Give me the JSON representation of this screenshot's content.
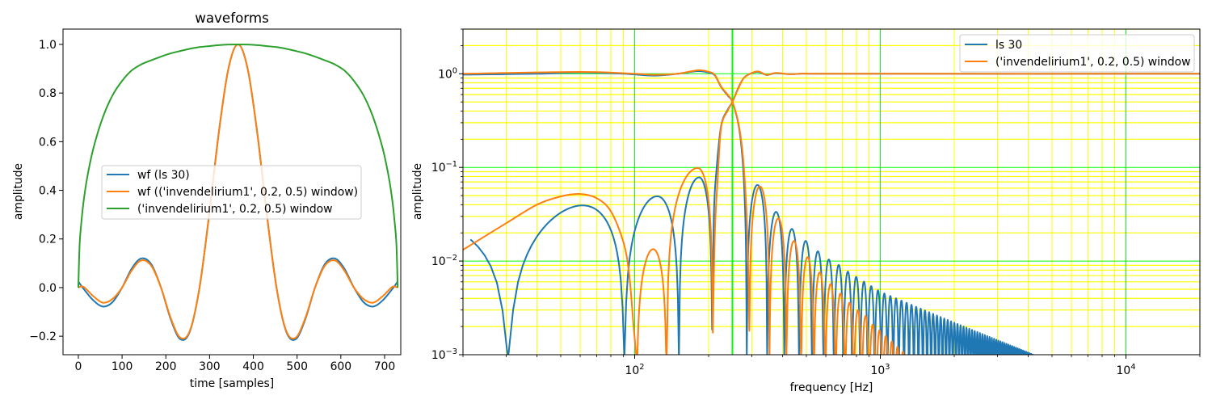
{
  "chart_data": [
    {
      "type": "line",
      "title": "waveforms",
      "xlabel": "time [samples]",
      "ylabel": "amplitude",
      "xlim": [
        -35,
        737
      ],
      "ylim": [
        -0.276,
        1.063
      ],
      "grid": false,
      "legend_placement": "center",
      "xticks": [
        0,
        100,
        200,
        300,
        400,
        500,
        600,
        700
      ],
      "xtick_labels": [
        "0",
        "100",
        "200",
        "300",
        "400",
        "500",
        "600",
        "700"
      ],
      "yticks": [
        -0.2,
        0.0,
        0.2,
        0.4,
        0.6,
        0.8,
        1.0
      ],
      "ytick_labels": [
        "−0.2",
        "0.0",
        "0.2",
        "0.4",
        "0.6",
        "0.8",
        "1.0"
      ],
      "series": [
        {
          "name": "wf (ls 30)",
          "color": "#1f77b4",
          "x": [
            0,
            12,
            34,
            56,
            78,
            100,
            122,
            144,
            167,
            189,
            211,
            233,
            255,
            277,
            299,
            321,
            343,
            365,
            387,
            409,
            431,
            453,
            475,
            497,
            519,
            541,
            563,
            586,
            608,
            630,
            652,
            674,
            696,
            718,
            730
          ],
          "y": [
            0.025,
            -0.005,
            -0.052,
            -0.078,
            -0.06,
            0,
            0.078,
            0.12,
            0.095,
            0,
            -0.129,
            -0.212,
            -0.18,
            0,
            0.3,
            0.637,
            0.9,
            1,
            0.9,
            0.637,
            0.3,
            0,
            -0.18,
            -0.212,
            -0.129,
            0,
            0.095,
            0.12,
            0.078,
            0,
            -0.06,
            -0.078,
            -0.052,
            -0.005,
            0.025
          ]
        },
        {
          "name": "wf (('invendelirium1', 0.2, 0.5) window)",
          "color": "#ff7f0e",
          "x": [
            0,
            12,
            34,
            56,
            78,
            100,
            122,
            144,
            167,
            189,
            211,
            233,
            255,
            277,
            299,
            321,
            343,
            365,
            387,
            409,
            431,
            453,
            475,
            497,
            519,
            541,
            563,
            586,
            608,
            630,
            652,
            674,
            696,
            718,
            730
          ],
          "y": [
            0,
            0.003,
            -0.035,
            -0.062,
            -0.047,
            0,
            0.07,
            0.112,
            0.089,
            0,
            -0.124,
            -0.206,
            -0.177,
            0,
            0.298,
            0.635,
            0.9,
            1,
            0.9,
            0.635,
            0.298,
            0,
            -0.177,
            -0.206,
            -0.124,
            0,
            0.089,
            0.112,
            0.07,
            0,
            -0.047,
            -0.062,
            -0.035,
            0.003,
            0
          ]
        },
        {
          "name": "('invendelirium1', 0.2, 0.5) window",
          "color": "#2ca02c",
          "x": [
            0,
            3,
            7,
            12,
            20,
            34,
            56,
            78,
            100,
            122,
            144,
            167,
            189,
            211,
            233,
            255,
            277,
            299,
            321,
            343,
            365,
            387,
            409,
            431,
            453,
            475,
            497,
            519,
            541,
            563,
            586,
            608,
            630,
            652,
            674,
            696,
            710,
            718,
            723,
            727,
            730
          ],
          "y": [
            0,
            0.18,
            0.27,
            0.354,
            0.45,
            0.57,
            0.7,
            0.79,
            0.85,
            0.893,
            0.918,
            0.935,
            0.95,
            0.963,
            0.973,
            0.982,
            0.989,
            0.993,
            0.997,
            0.9995,
            1,
            0.9995,
            0.997,
            0.993,
            0.989,
            0.982,
            0.973,
            0.963,
            0.95,
            0.935,
            0.918,
            0.893,
            0.85,
            0.79,
            0.7,
            0.57,
            0.45,
            0.354,
            0.27,
            0.18,
            0
          ]
        }
      ]
    },
    {
      "type": "line",
      "title": "",
      "xlabel": "frequency [Hz]",
      "ylabel": "amplitude",
      "xscale": "log",
      "yscale": "log",
      "xlim": [
        20,
        20000
      ],
      "ylim": [
        0.001,
        3
      ],
      "grid": true,
      "legend_placement": "top-right",
      "grid_colors": {
        "minor": "#ffff00",
        "major": "#00ff00",
        "base": "#b0b0b0"
      },
      "marked_frequency_hz": 250,
      "xticks": [
        {
          "base": "10",
          "exp": "2",
          "value": 100
        },
        {
          "base": "10",
          "exp": "3",
          "value": 1000
        },
        {
          "base": "10",
          "exp": "4",
          "value": 10000
        }
      ],
      "yticks": [
        {
          "base": "10",
          "exp": "0",
          "value": 1
        },
        {
          "base": "10",
          "exp": "−1",
          "value": 0.1
        },
        {
          "base": "10",
          "exp": "−2",
          "value": 0.01
        },
        {
          "base": "10",
          "exp": "−3",
          "value": 0.001
        }
      ],
      "series": [
        {
          "name": "ls 30",
          "color": "#1f77b4",
          "curves": [
            {
              "segments": [
                {
                  "type": "points",
                  "points": [
                    [
                      20,
                      0.98
                    ],
                    [
                      40,
                      1.0
                    ],
                    [
                      60,
                      1.035
                    ],
                    [
                      90,
                      1.0
                    ],
                    [
                      120,
                      0.955
                    ],
                    [
                      150,
                      1.0
                    ],
                    [
                      180,
                      1.067
                    ],
                    [
                      200,
                      1.03
                    ],
                    [
                      212,
                      0.96
                    ],
                    [
                      225,
                      0.72
                    ],
                    [
                      240,
                      0.58
                    ],
                    [
                      250,
                      0.5
                    ],
                    [
                      265,
                      0.28
                    ],
                    [
                      275,
                      0.12
                    ],
                    [
                      281,
                      0.04
                    ],
                    [
                      284,
                      0.012
                    ],
                    [
                      286,
                      3e-05
                    ]
                  ]
                },
                {
                  "type": "sidelobes",
                  "first_null": 286,
                  "spacing": 60.2,
                  "envelope": [
                    [
                      316,
                      0.065
                    ],
                    [
                      376,
                      0.0336
                    ],
                    [
                      436,
                      0.0221
                    ],
                    [
                      497,
                      0.0164
                    ],
                    [
                      557,
                      0.0127
                    ],
                    [
                      617,
                      0.0104
                    ],
                    [
                      677,
                      0.0091
                    ],
                    [
                      738,
                      0.0077
                    ],
                    [
                      1000,
                      0.0047
                    ],
                    [
                      2000,
                      0.0022
                    ],
                    [
                      4200,
                      0.001
                    ],
                    [
                      20000,
                      0.0002
                    ]
                  ]
                }
              ]
            },
            {
              "segments": [
                {
                  "type": "lobe",
                  "start": -29.8,
                  "peak": 0.35,
                  "end": 30.5,
                  "amp": 0.0375
                },
                {
                  "type": "lobe",
                  "start": 30.5,
                  "peak": 61.4,
                  "end": 90.8,
                  "amp": 0.0393
                },
                {
                  "type": "lobe",
                  "start": 90.8,
                  "peak": 123.6,
                  "end": 151.4,
                  "amp": 0.0492
                },
                {
                  "type": "lobe",
                  "start": 151.4,
                  "peak": 183,
                  "end": 206.7,
                  "amp": 0.0783,
                  "end_depth": 0.00185
                },
                {
                  "type": "points",
                  "points": [
                    [
                      206.7,
                      0.00185
                    ],
                    [
                      210,
                      0.03
                    ],
                    [
                      215,
                      0.09
                    ],
                    [
                      225,
                      0.28
                    ],
                    [
                      240,
                      0.42
                    ],
                    [
                      250,
                      0.5
                    ],
                    [
                      265,
                      0.72
                    ],
                    [
                      278,
                      0.9
                    ],
                    [
                      295,
                      1.0
                    ],
                    [
                      318,
                      1.05
                    ],
                    [
                      345,
                      0.97
                    ],
                    [
                      375,
                      1.015
                    ],
                    [
                      430,
                      0.99
                    ],
                    [
                      500,
                      1.005
                    ],
                    [
                      700,
                      1.0
                    ],
                    [
                      20000,
                      1.0
                    ]
                  ]
                }
              ]
            }
          ]
        },
        {
          "name": "('invendelirium1', 0.2, 0.5) window",
          "color": "#ff7f0e",
          "curves": [
            {
              "segments": [
                {
                  "type": "points",
                  "points": [
                    [
                      20,
                      1.0
                    ],
                    [
                      60,
                      1.047
                    ],
                    [
                      100,
                      1.0
                    ],
                    [
                      120,
                      0.975
                    ],
                    [
                      150,
                      1.0
                    ],
                    [
                      180,
                      1.09
                    ],
                    [
                      200,
                      1.05
                    ],
                    [
                      212,
                      0.97
                    ],
                    [
                      225,
                      0.73
                    ],
                    [
                      240,
                      0.59
                    ],
                    [
                      250,
                      0.5
                    ],
                    [
                      265,
                      0.29
                    ],
                    [
                      276,
                      0.13
                    ],
                    [
                      285,
                      0.035
                    ],
                    [
                      290,
                      0.008
                    ],
                    [
                      293,
                      0.0018
                    ]
                  ]
                },
                {
                  "type": "sidelobes",
                  "first_null": 293,
                  "first_null_depth": 0.0018,
                  "spacing": 60.8,
                  "envelope": [
                    [
                      323,
                      0.063
                    ],
                    [
                      384,
                      0.0286
                    ],
                    [
                      445,
                      0.0164
                    ],
                    [
                      506,
                      0.011
                    ],
                    [
                      566,
                      0.0076
                    ],
                    [
                      627,
                      0.0057
                    ],
                    [
                      688,
                      0.0045
                    ],
                    [
                      748,
                      0.0036
                    ],
                    [
                      809,
                      0.003
                    ],
                    [
                      870,
                      0.0026
                    ],
                    [
                      931,
                      0.0021
                    ],
                    [
                      1000,
                      0.0018
                    ],
                    [
                      1300,
                      0.00095
                    ],
                    [
                      2000,
                      0.0003
                    ]
                  ]
                }
              ]
            },
            {
              "segments": [
                {
                  "type": "points",
                  "points": [
                    [
                      20,
                      0.0132
                    ],
                    [
                      30,
                      0.0254
                    ],
                    [
                      40,
                      0.04
                    ],
                    [
                      50,
                      0.049
                    ],
                    [
                      60,
                      0.052
                    ],
                    [
                      70,
                      0.047
                    ],
                    [
                      80,
                      0.034
                    ],
                    [
                      90,
                      0.0159
                    ],
                    [
                      95,
                      0.0072
                    ],
                    [
                      99,
                      0.002
                    ],
                    [
                      101.8,
                      3e-05
                    ]
                  ]
                },
                {
                  "type": "lobe",
                  "start": 101.8,
                  "peak": 119,
                  "end": 135,
                  "amp": 0.0134
                },
                {
                  "type": "lobe",
                  "start": 135,
                  "peak": 180.7,
                  "end": 208,
                  "amp": 0.0986,
                  "end_depth": 0.00172
                },
                {
                  "type": "points",
                  "points": [
                    [
                      208,
                      0.00172
                    ],
                    [
                      212,
                      0.02
                    ],
                    [
                      218,
                      0.08
                    ],
                    [
                      225,
                      0.27
                    ],
                    [
                      240,
                      0.41
                    ],
                    [
                      250,
                      0.5
                    ],
                    [
                      265,
                      0.71
                    ],
                    [
                      278,
                      0.9
                    ],
                    [
                      295,
                      1.0
                    ],
                    [
                      318,
                      1.06
                    ],
                    [
                      345,
                      0.975
                    ],
                    [
                      375,
                      1.02
                    ],
                    [
                      430,
                      0.99
                    ],
                    [
                      500,
                      1.005
                    ],
                    [
                      700,
                      1.0
                    ],
                    [
                      20000,
                      1.0
                    ]
                  ]
                }
              ]
            }
          ]
        }
      ]
    }
  ]
}
